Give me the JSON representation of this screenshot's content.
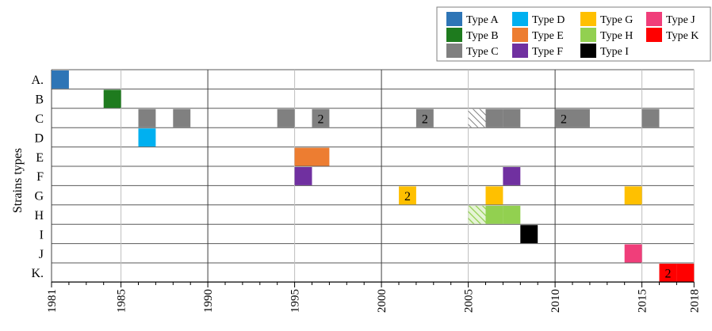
{
  "chart_data": {
    "type": "timeline",
    "ylabel": "Strains types",
    "xlabel": "",
    "x_range": [
      1981,
      2018
    ],
    "x_ticks": [
      1981,
      1985,
      1990,
      1995,
      2000,
      2005,
      2010,
      2015,
      2018
    ],
    "x_tick_labels": [
      "1981",
      "1985",
      "1990",
      "1995",
      "2000",
      "2005",
      "2010",
      "2015",
      "2018"
    ],
    "rows": [
      {
        "label": "A.",
        "type": "Type A"
      },
      {
        "label": "B",
        "type": "Type B"
      },
      {
        "label": "C",
        "type": "Type C"
      },
      {
        "label": "D",
        "type": "Type D"
      },
      {
        "label": "E",
        "type": "Type E"
      },
      {
        "label": "F",
        "type": "Type F"
      },
      {
        "label": "G",
        "type": "Type G"
      },
      {
        "label": "H",
        "type": "Type H"
      },
      {
        "label": "I",
        "type": "Type I"
      },
      {
        "label": "J",
        "type": "Type J"
      },
      {
        "label": "K.",
        "type": "Type K"
      }
    ],
    "legend": [
      {
        "name": "Type A",
        "color": "#2e75b6"
      },
      {
        "name": "Type D",
        "color": "#00b0f0"
      },
      {
        "name": "Type G",
        "color": "#ffc000"
      },
      {
        "name": "Type J",
        "color": "#f03e7a"
      },
      {
        "name": "Type B",
        "color": "#1e7b1e"
      },
      {
        "name": "Type E",
        "color": "#ed7d31"
      },
      {
        "name": "Type H",
        "color": "#92d050"
      },
      {
        "name": "Type K",
        "color": "#ff0000"
      },
      {
        "name": "Type C",
        "color": "#808080"
      },
      {
        "name": "Type F",
        "color": "#7030a0"
      },
      {
        "name": "Type I",
        "color": "#000000"
      }
    ],
    "legend_position": "top-right",
    "isolates": [
      {
        "row": 0,
        "year": 1981,
        "count": 1
      },
      {
        "row": 1,
        "year": 1984,
        "count": 1
      },
      {
        "row": 2,
        "year": 1986,
        "count": 1
      },
      {
        "row": 2,
        "year": 1988,
        "count": 1
      },
      {
        "row": 2,
        "year": 1994,
        "count": 1
      },
      {
        "row": 2,
        "year": 1996,
        "count": 2
      },
      {
        "row": 2,
        "year": 2002,
        "count": 2
      },
      {
        "row": 2,
        "year": 2005,
        "count": 1,
        "hatched": true
      },
      {
        "row": 2,
        "year": 2006,
        "count": 1
      },
      {
        "row": 2,
        "year": 2007,
        "count": 1
      },
      {
        "row": 2,
        "year": 2010,
        "count": 2
      },
      {
        "row": 2,
        "year": 2011,
        "count": 1
      },
      {
        "row": 2,
        "year": 2015,
        "count": 1
      },
      {
        "row": 3,
        "year": 1986,
        "count": 1
      },
      {
        "row": 4,
        "year": 1995,
        "count": 1
      },
      {
        "row": 4,
        "year": 1996,
        "count": 1
      },
      {
        "row": 5,
        "year": 1995,
        "count": 1
      },
      {
        "row": 5,
        "year": 2007,
        "count": 1
      },
      {
        "row": 6,
        "year": 2001,
        "count": 2
      },
      {
        "row": 6,
        "year": 2006,
        "count": 1
      },
      {
        "row": 6,
        "year": 2014,
        "count": 1
      },
      {
        "row": 7,
        "year": 2005,
        "count": 1,
        "hatched": true
      },
      {
        "row": 7,
        "year": 2006,
        "count": 1
      },
      {
        "row": 7,
        "year": 2007,
        "count": 1
      },
      {
        "row": 8,
        "year": 2008,
        "count": 1
      },
      {
        "row": 9,
        "year": 2014,
        "count": 1
      },
      {
        "row": 10,
        "year": 2016,
        "count": 2
      },
      {
        "row": 10,
        "year": 2017,
        "count": 1
      }
    ]
  }
}
